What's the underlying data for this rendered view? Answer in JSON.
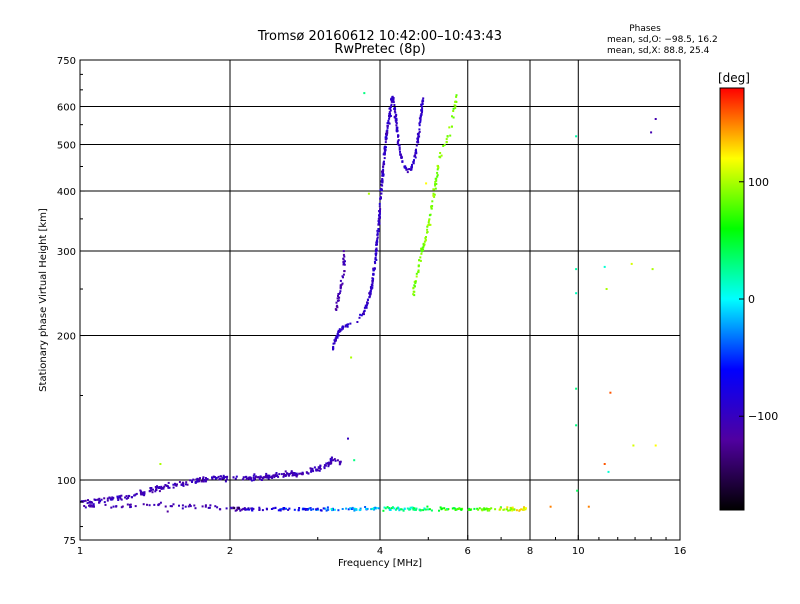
{
  "header": {
    "title": "Tromsø 20160612 10:42:00–10:43:43",
    "subtitle": "RwPretec (8p)"
  },
  "stats": {
    "heading": "Phases",
    "line_o": "mean, sd,O: −98.5, 16.2",
    "line_x": "mean, sd,X:  88.8, 25.4"
  },
  "colorbar": {
    "label": "[deg]",
    "ticks": [
      {
        "value": 100,
        "label": "100"
      },
      {
        "value": 0,
        "label": "0"
      },
      {
        "value": -100,
        "label": "−100"
      }
    ],
    "range": [
      -180,
      180
    ],
    "colormap": [
      "#000000",
      "#5000a0",
      "#0000ff",
      "#00ffff",
      "#00ff00",
      "#ffff00",
      "#ff0000"
    ]
  },
  "chart_data": {
    "type": "scatter",
    "title": "Tromsø 20160612 10:42:00–10:43:43",
    "subtitle": "RwPretec (8p)",
    "xlabel": "Frequency [MHz]",
    "ylabel": "Stationary phase Virtual Height [km]",
    "xscale": "log",
    "yscale": "log",
    "xlim": [
      1,
      16
    ],
    "ylim": [
      75,
      750
    ],
    "xticks": [
      {
        "value": 1,
        "label": "1"
      },
      {
        "value": 2,
        "label": "2"
      },
      {
        "value": 4,
        "label": "4"
      },
      {
        "value": 6,
        "label": "6"
      },
      {
        "value": 8,
        "label": "8"
      },
      {
        "value": 10,
        "label": "10"
      },
      {
        "value": 16,
        "label": "16"
      }
    ],
    "yticks": [
      {
        "value": 75,
        "label": "75"
      },
      {
        "value": 100,
        "label": "100"
      },
      {
        "value": 200,
        "label": "200"
      },
      {
        "value": 300,
        "label": "300"
      },
      {
        "value": 400,
        "label": "400"
      },
      {
        "value": 500,
        "label": "500"
      },
      {
        "value": 600,
        "label": "600"
      },
      {
        "value": 750,
        "label": "750"
      }
    ],
    "vgrid": [
      2,
      4,
      6,
      8,
      10
    ],
    "hgrid": [
      100,
      200,
      300,
      400,
      500,
      600
    ],
    "grid": true,
    "color_by": "phase_deg",
    "traces": [
      {
        "desc": "E-layer O-mode",
        "points": [
          [
            1.0,
            90
          ],
          [
            1.08,
            90
          ],
          [
            1.15,
            91
          ],
          [
            1.22,
            92
          ],
          [
            1.3,
            93
          ],
          [
            1.38,
            95
          ],
          [
            1.45,
            96
          ],
          [
            1.52,
            97
          ],
          [
            1.6,
            98
          ],
          [
            1.68,
            99
          ],
          [
            1.76,
            100
          ],
          [
            1.85,
            101
          ],
          [
            1.95,
            101
          ],
          [
            2.05,
            101
          ],
          [
            2.15,
            101
          ],
          [
            2.3,
            101
          ],
          [
            2.45,
            102
          ],
          [
            2.6,
            103
          ],
          [
            2.75,
            103
          ],
          [
            2.9,
            104
          ],
          [
            3.05,
            106
          ],
          [
            3.15,
            108
          ],
          [
            3.25,
            111
          ],
          [
            3.35,
            109
          ]
        ],
        "phase": -105,
        "spread_x": 0.012,
        "spread_y": 0.02,
        "n": 340
      },
      {
        "desc": "E-layer lower trace",
        "points": [
          [
            1.02,
            88
          ],
          [
            1.2,
            88
          ],
          [
            1.4,
            89
          ],
          [
            1.6,
            88
          ],
          [
            1.8,
            88
          ],
          [
            2.0,
            87
          ],
          [
            2.1,
            87
          ]
        ],
        "phase": -110,
        "spread_x": 0.01,
        "spread_y": 0.012,
        "n": 60
      },
      {
        "desc": "Sporadic E 87 km",
        "points": [
          [
            2.0,
            87
          ],
          [
            2.5,
            87
          ],
          [
            3.0,
            87
          ],
          [
            3.5,
            87
          ],
          [
            4.0,
            87
          ],
          [
            4.5,
            87
          ],
          [
            5.0,
            87
          ],
          [
            5.5,
            87
          ],
          [
            6.0,
            87
          ],
          [
            7.0,
            87
          ],
          [
            8.0,
            87
          ]
        ],
        "phase": -120,
        "phase_end": 120,
        "spread_x": 0.012,
        "spread_y": 0.012,
        "n": 240
      },
      {
        "desc": "F-layer O-mode",
        "points": [
          [
            3.2,
            185
          ],
          [
            3.25,
            195
          ],
          [
            3.3,
            203
          ],
          [
            3.4,
            210
          ],
          [
            3.5,
            212
          ],
          [
            3.6,
            215
          ],
          [
            3.7,
            222
          ],
          [
            3.78,
            235
          ],
          [
            3.86,
            255
          ],
          [
            3.92,
            290
          ],
          [
            3.98,
            345
          ],
          [
            4.02,
            400
          ],
          [
            4.08,
            470
          ],
          [
            4.13,
            535
          ],
          [
            4.18,
            570
          ],
          [
            4.2,
            600
          ],
          [
            4.24,
            630
          ],
          [
            4.28,
            600
          ],
          [
            4.32,
            545
          ],
          [
            4.36,
            500
          ],
          [
            4.42,
            465
          ],
          [
            4.48,
            450
          ],
          [
            4.55,
            440
          ],
          [
            4.62,
            445
          ],
          [
            4.7,
            470
          ],
          [
            4.78,
            520
          ],
          [
            4.84,
            580
          ],
          [
            4.88,
            630
          ]
        ],
        "phase": -95,
        "spread_x": 0.006,
        "spread_y": 0.012,
        "n": 420
      },
      {
        "desc": "F-layer spread",
        "points": [
          [
            3.25,
            220
          ],
          [
            3.3,
            240
          ],
          [
            3.35,
            255
          ],
          [
            3.4,
            270
          ],
          [
            3.38,
            300
          ]
        ],
        "phase": -110,
        "spread_x": 0.01,
        "spread_y": 0.02,
        "n": 40
      },
      {
        "desc": "F-layer X-mode",
        "points": [
          [
            4.65,
            235
          ],
          [
            4.7,
            255
          ],
          [
            4.78,
            275
          ],
          [
            4.85,
            300
          ],
          [
            4.95,
            320
          ],
          [
            5.3,
            480
          ],
          [
            5.4,
            500
          ],
          [
            5.5,
            520
          ],
          [
            5.55,
            545
          ],
          [
            5.6,
            570
          ],
          [
            5.65,
            600
          ],
          [
            5.7,
            635
          ]
        ],
        "phase": 88,
        "spread_x": 0.008,
        "spread_y": 0.014,
        "n": 110
      }
    ],
    "isolated_points": [
      {
        "f": 9.9,
        "h": 520,
        "phase": 20
      },
      {
        "f": 9.9,
        "h": 275,
        "phase": 20
      },
      {
        "f": 9.9,
        "h": 245,
        "phase": 15
      },
      {
        "f": 9.9,
        "h": 155,
        "phase": 30
      },
      {
        "f": 9.9,
        "h": 130,
        "phase": 30
      },
      {
        "f": 9.95,
        "h": 95,
        "phase": 40
      },
      {
        "f": 11.3,
        "h": 278,
        "phase": 10
      },
      {
        "f": 11.4,
        "h": 250,
        "phase": 100
      },
      {
        "f": 11.6,
        "h": 152,
        "phase": 160
      },
      {
        "f": 11.3,
        "h": 108,
        "phase": 160
      },
      {
        "f": 11.5,
        "h": 104,
        "phase": 10
      },
      {
        "f": 12.8,
        "h": 282,
        "phase": 110
      },
      {
        "f": 12.9,
        "h": 118,
        "phase": 110
      },
      {
        "f": 14.3,
        "h": 118,
        "phase": 120
      },
      {
        "f": 14.1,
        "h": 275,
        "phase": 100
      },
      {
        "f": 14.3,
        "h": 565,
        "phase": -110
      },
      {
        "f": 14.0,
        "h": 530,
        "phase": -110
      },
      {
        "f": 3.72,
        "h": 640,
        "phase": 30
      },
      {
        "f": 3.8,
        "h": 395,
        "phase": 100
      },
      {
        "f": 4.95,
        "h": 415,
        "phase": 120
      },
      {
        "f": 5.05,
        "h": 340,
        "phase": 100
      },
      {
        "f": 3.5,
        "h": 180,
        "phase": 100
      },
      {
        "f": 1.45,
        "h": 108,
        "phase": 100
      },
      {
        "f": 1.5,
        "h": 86,
        "phase": -120
      },
      {
        "f": 3.55,
        "h": 110,
        "phase": 30
      },
      {
        "f": 3.45,
        "h": 122,
        "phase": -100
      },
      {
        "f": 8.8,
        "h": 88,
        "phase": 150
      },
      {
        "f": 10.5,
        "h": 88,
        "phase": 150
      }
    ]
  }
}
